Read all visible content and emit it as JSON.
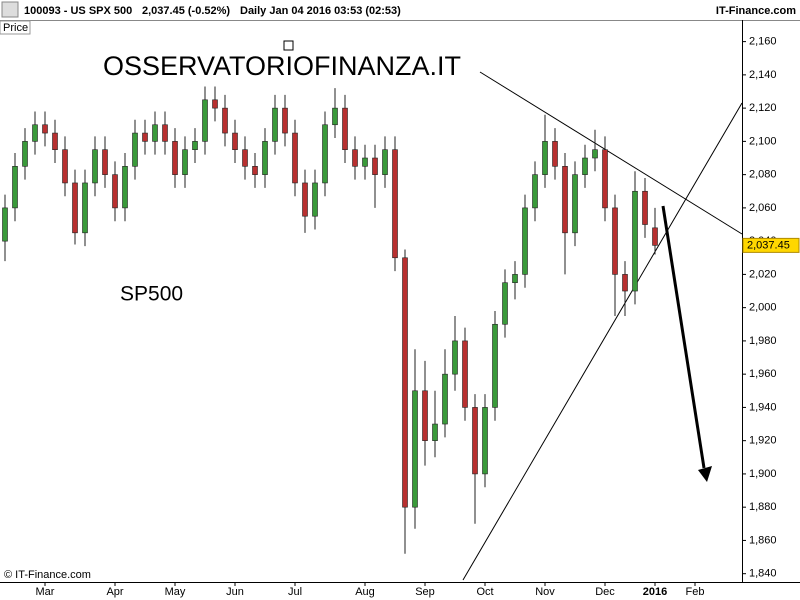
{
  "header": {
    "symbol": "100093 - US SPX 500",
    "quote": "2,037.45 (-0.52%)",
    "period": "Daily  Jan 04 2016 03:53 (02:53)",
    "site": "IT-Finance.com",
    "panel": "Price"
  },
  "watermark": "OSSERVATORIOFINANZA.IT",
  "label": "SP500",
  "copyright": "© IT-Finance.com",
  "chart_data": {
    "type": "candlestick",
    "up_color": "#3a9a3a",
    "down_color": "#b83030",
    "categories": [
      null,
      null,
      null,
      null,
      "Mar",
      null,
      null,
      null,
      null,
      null,
      null,
      "Apr",
      null,
      null,
      null,
      null,
      null,
      "May",
      null,
      null,
      null,
      null,
      null,
      "Jun",
      null,
      null,
      null,
      null,
      null,
      "Jul",
      null,
      null,
      null,
      null,
      null,
      null,
      "Aug",
      null,
      null,
      null,
      null,
      null,
      "Sep",
      null,
      null,
      null,
      null,
      null,
      "Oct",
      null,
      null,
      null,
      null,
      null,
      "Nov",
      null,
      null,
      null,
      null,
      null,
      "Dec",
      null,
      null,
      null,
      null,
      "2016",
      null,
      null,
      null,
      "Feb",
      null,
      null,
      null,
      null
    ],
    "open": [
      2040,
      2060,
      2085,
      2100,
      2110,
      2105,
      2095,
      2075,
      2045,
      2075,
      2095,
      2080,
      2060,
      2085,
      2105,
      2100,
      2110,
      2100,
      2080,
      2095,
      2100,
      2125,
      2120,
      2105,
      2095,
      2085,
      2080,
      2100,
      2120,
      2105,
      2075,
      2055,
      2075,
      2110,
      2120,
      2095,
      2085,
      2090,
      2080,
      2095,
      2030,
      1880,
      1950,
      1920,
      1930,
      1960,
      1980,
      1940,
      1900,
      1940,
      1990,
      2015,
      2020,
      2060,
      2080,
      2100,
      2085,
      2045,
      2080,
      2090,
      2095,
      2060,
      2020,
      2010,
      2070,
      2048,
      null,
      null,
      null,
      null,
      null,
      null,
      null,
      null
    ],
    "high": [
      2068,
      2093,
      2108,
      2118,
      2118,
      2113,
      2103,
      2083,
      2083,
      2103,
      2103,
      2088,
      2093,
      2113,
      2113,
      2118,
      2118,
      2108,
      2103,
      2108,
      2133,
      2133,
      2128,
      2113,
      2103,
      2093,
      2108,
      2128,
      2128,
      2113,
      2083,
      2083,
      2118,
      2132,
      2128,
      2103,
      2098,
      2098,
      2103,
      2103,
      2035,
      1975,
      1968,
      1950,
      1975,
      1995,
      1988,
      1948,
      1948,
      1998,
      2023,
      2028,
      2068,
      2088,
      2116,
      2108,
      2093,
      2088,
      2098,
      2107,
      2103,
      2068,
      2028,
      2082,
      2078,
      2060,
      null,
      null,
      null,
      null,
      null,
      null,
      null,
      null
    ],
    "low": [
      2028,
      2052,
      2077,
      2092,
      2097,
      2087,
      2067,
      2038,
      2037,
      2067,
      2072,
      2052,
      2052,
      2077,
      2092,
      2092,
      2092,
      2072,
      2072,
      2087,
      2092,
      2112,
      2097,
      2087,
      2077,
      2072,
      2072,
      2092,
      2097,
      2067,
      2045,
      2047,
      2067,
      2102,
      2087,
      2077,
      2077,
      2060,
      2072,
      2022,
      1852,
      1867,
      1905,
      1910,
      1922,
      1950,
      1932,
      1870,
      1892,
      1932,
      1982,
      2005,
      2012,
      2052,
      2072,
      2077,
      2020,
      2037,
      2072,
      2082,
      2052,
      1995,
      1995,
      2002,
      2042,
      2032,
      null,
      null,
      null,
      null,
      null,
      null,
      null,
      null
    ],
    "close": [
      2060,
      2085,
      2100,
      2110,
      2105,
      2095,
      2075,
      2045,
      2075,
      2095,
      2080,
      2060,
      2085,
      2105,
      2100,
      2110,
      2100,
      2080,
      2095,
      2100,
      2125,
      2120,
      2105,
      2095,
      2085,
      2080,
      2100,
      2120,
      2105,
      2075,
      2055,
      2075,
      2110,
      2120,
      2095,
      2085,
      2090,
      2080,
      2095,
      2030,
      1880,
      1950,
      1920,
      1930,
      1960,
      1980,
      1940,
      1900,
      1940,
      1990,
      2015,
      2020,
      2060,
      2080,
      2100,
      2085,
      2045,
      2080,
      2090,
      2095,
      2060,
      2020,
      2010,
      2070,
      2050,
      2037.45,
      null,
      null,
      null,
      null,
      null,
      null,
      null,
      null
    ],
    "last_label": "2,037.45",
    "ylim": [
      1835,
      2173
    ],
    "yticks": [
      {
        "value": 1840,
        "label": "1,840"
      },
      {
        "value": 1860,
        "label": "1,860"
      },
      {
        "value": 1880,
        "label": "1,880"
      },
      {
        "value": 1900,
        "label": "1,900"
      },
      {
        "value": 1920,
        "label": "1,920"
      },
      {
        "value": 1940,
        "label": "1,940"
      },
      {
        "value": 1960,
        "label": "1,960"
      },
      {
        "value": 1980,
        "label": "1,980"
      },
      {
        "value": 2000,
        "label": "2,000"
      },
      {
        "value": 2020,
        "label": "2,020"
      },
      {
        "value": 2040,
        "label": "2,040"
      },
      {
        "value": 2060,
        "label": "2,060"
      },
      {
        "value": 2080,
        "label": "2,080"
      },
      {
        "value": 2100,
        "label": "2,100"
      },
      {
        "value": 2120,
        "label": "2,120"
      },
      {
        "value": 2140,
        "label": "2,140"
      },
      {
        "value": 2160,
        "label": "2,160"
      }
    ]
  }
}
